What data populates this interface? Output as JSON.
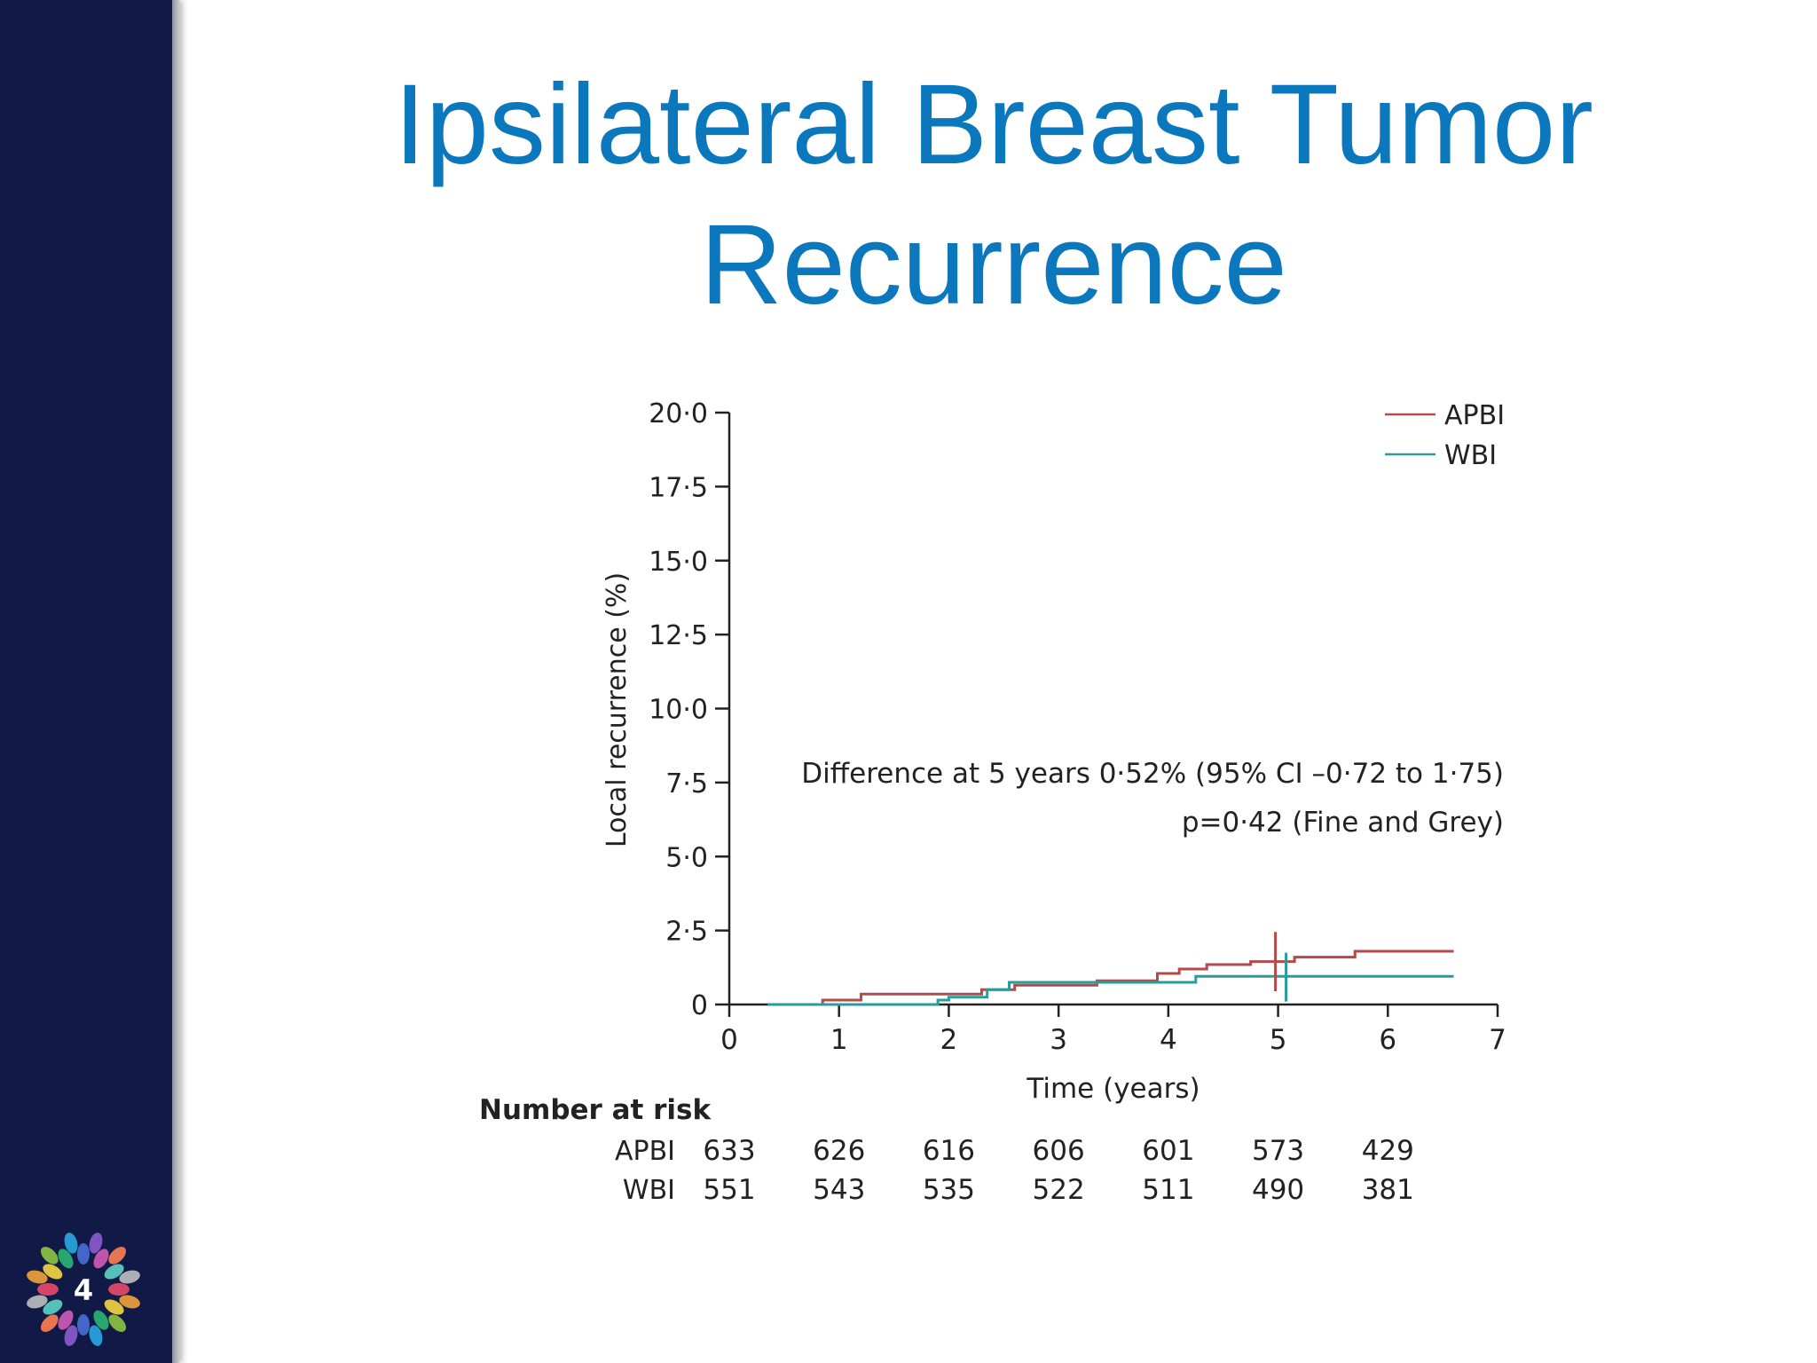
{
  "title": {
    "line1": "Ipsilateral Breast Tumor",
    "line2": "Recurrence"
  },
  "logo": {
    "icon": "ribbon-wreath-logo-icon",
    "text": "4"
  },
  "colors": {
    "sidebar": "#111a47",
    "title": "#0b78bd",
    "apbi": "#b54a4a",
    "wbi": "#2a9c9c"
  },
  "chart_data": {
    "type": "line",
    "xlabel": "Time (years)",
    "ylabel": "Local recurrence (%)",
    "xlim": [
      0,
      7
    ],
    "ylim": [
      0,
      20
    ],
    "x_ticks": [
      "0",
      "1",
      "2",
      "3",
      "4",
      "5",
      "6",
      "7"
    ],
    "y_ticks": [
      "0",
      "2·5",
      "5·0",
      "7·5",
      "10·0",
      "12·5",
      "15·0",
      "17·5",
      "20·0"
    ],
    "legend_position": "top-right",
    "series": [
      {
        "name": "APBI",
        "color": "#b54a4a",
        "points": [
          [
            0.35,
            0
          ],
          [
            0.85,
            0
          ],
          [
            0.85,
            0.15
          ],
          [
            1.2,
            0.15
          ],
          [
            1.2,
            0.35
          ],
          [
            2.0,
            0.35
          ],
          [
            2.0,
            0.35
          ],
          [
            2.3,
            0.35
          ],
          [
            2.3,
            0.5
          ],
          [
            2.6,
            0.5
          ],
          [
            2.6,
            0.65
          ],
          [
            3.35,
            0.65
          ],
          [
            3.35,
            0.8
          ],
          [
            3.9,
            0.8
          ],
          [
            3.9,
            1.05
          ],
          [
            4.1,
            1.05
          ],
          [
            4.1,
            1.2
          ],
          [
            4.35,
            1.2
          ],
          [
            4.35,
            1.35
          ],
          [
            4.75,
            1.35
          ],
          [
            4.75,
            1.45
          ],
          [
            5.15,
            1.45
          ],
          [
            5.15,
            1.6
          ],
          [
            5.7,
            1.6
          ],
          [
            5.7,
            1.8
          ],
          [
            6.6,
            1.8
          ]
        ]
      },
      {
        "name": "WBI",
        "color": "#2a9c9c",
        "points": [
          [
            0.35,
            0
          ],
          [
            1.9,
            0
          ],
          [
            1.9,
            0.15
          ],
          [
            2.0,
            0.15
          ],
          [
            2.0,
            0.25
          ],
          [
            2.35,
            0.25
          ],
          [
            2.35,
            0.5
          ],
          [
            2.55,
            0.5
          ],
          [
            2.55,
            0.75
          ],
          [
            4.25,
            0.75
          ],
          [
            4.25,
            0.95
          ],
          [
            6.6,
            0.95
          ]
        ]
      }
    ],
    "marker_year": 5,
    "annotations": [
      "Difference at 5 years 0·52% (95% CI –0·72 to 1·75)",
      "p=0·42 (Fine and Grey)"
    ],
    "risk_table": {
      "heading": "Number at risk",
      "rows": [
        {
          "label": "APBI",
          "values": [
            "633",
            "626",
            "616",
            "606",
            "601",
            "573",
            "429"
          ]
        },
        {
          "label": "WBI",
          "values": [
            "551",
            "543",
            "535",
            "522",
            "511",
            "490",
            "381"
          ]
        }
      ]
    }
  }
}
